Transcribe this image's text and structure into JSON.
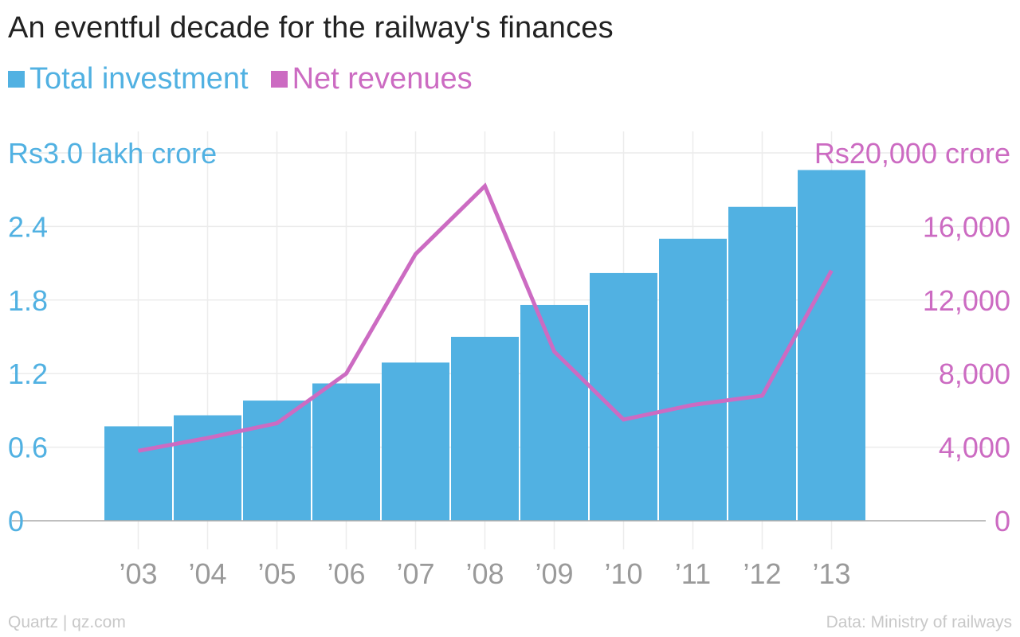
{
  "title": "An eventful decade for the railway's finances",
  "footer": {
    "left": "Quartz | qz.com",
    "right": "Data: Ministry of railways"
  },
  "colors": {
    "investment": "#51b1e2",
    "revenues": "#cc6bc2",
    "grid": "#ececec",
    "axis_line": "#aaaaaa",
    "xtick": "#9a9a9a"
  },
  "chart_data": {
    "type": "bar",
    "categories": [
      "’03",
      "’04",
      "’05",
      "’06",
      "’07",
      "’08",
      "’09",
      "’10",
      "’11",
      "’12",
      "’13"
    ],
    "series": [
      {
        "name": "Total investment",
        "type": "bar",
        "axis": "left",
        "values": [
          0.77,
          0.86,
          0.98,
          1.12,
          1.29,
          1.5,
          1.76,
          2.02,
          2.3,
          2.56,
          2.86
        ]
      },
      {
        "name": "Net revenues",
        "type": "line",
        "axis": "right",
        "values": [
          3800,
          4500,
          5300,
          8000,
          14500,
          18200,
          9200,
          5500,
          6300,
          6800,
          13600
        ]
      }
    ],
    "y_left": {
      "ylim": [
        0,
        3.0
      ],
      "ticks": [
        "0",
        "0.6",
        "1.2",
        "1.8",
        "2.4",
        "Rs3.0 lakh crore"
      ],
      "tick_values": [
        0,
        0.6,
        1.2,
        1.8,
        2.4,
        3.0
      ]
    },
    "y_right": {
      "ylim": [
        0,
        20000
      ],
      "ticks": [
        "0",
        "4,000",
        "8,000",
        "12,000",
        "16,000",
        "Rs20,000 crore"
      ],
      "tick_values": [
        0,
        4000,
        8000,
        12000,
        16000,
        20000
      ]
    },
    "grid": true,
    "legend": "top-left"
  }
}
